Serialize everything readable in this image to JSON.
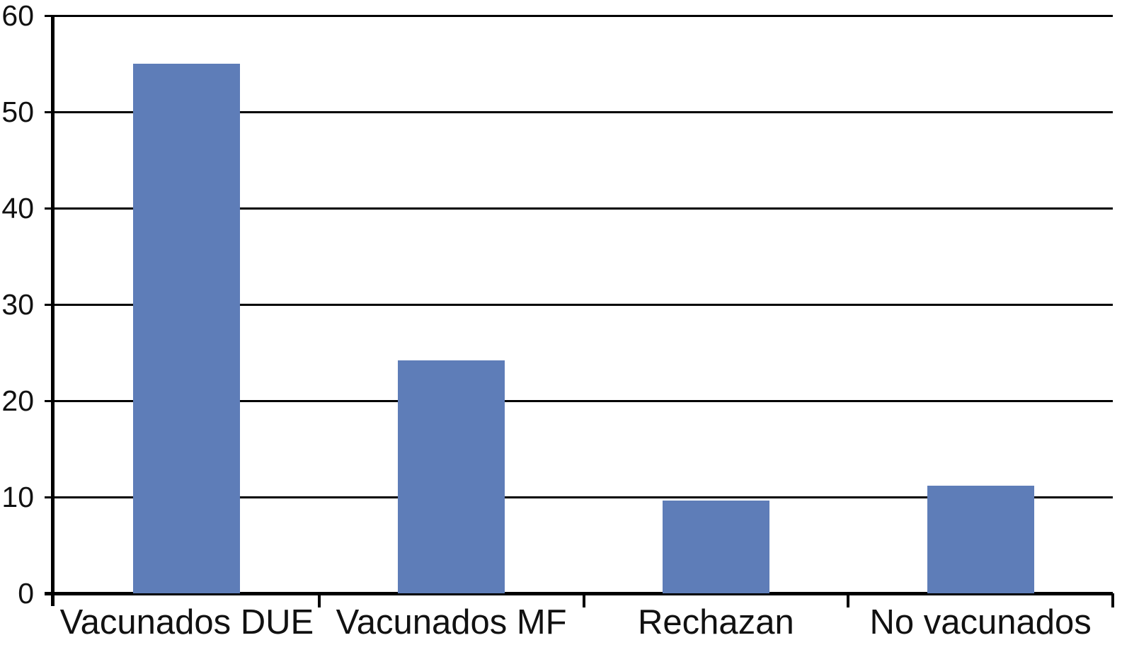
{
  "chart_data": {
    "type": "bar",
    "categories": [
      "Vacunados DUE",
      "Vacunados MF",
      "Rechazan",
      "No vacunados"
    ],
    "values": [
      55,
      24.2,
      9.6,
      11.2
    ],
    "title": "",
    "xlabel": "",
    "ylabel": "",
    "ylim": [
      0,
      60
    ],
    "yticks": [
      0,
      10,
      20,
      30,
      40,
      50,
      60
    ],
    "grid": "horizontal",
    "legend": "none",
    "bar_color": "#5E7DB8",
    "axis_color": "#000000",
    "gridline_color": "#000000",
    "text_color": "#111111",
    "background_color": "#ffffff"
  }
}
